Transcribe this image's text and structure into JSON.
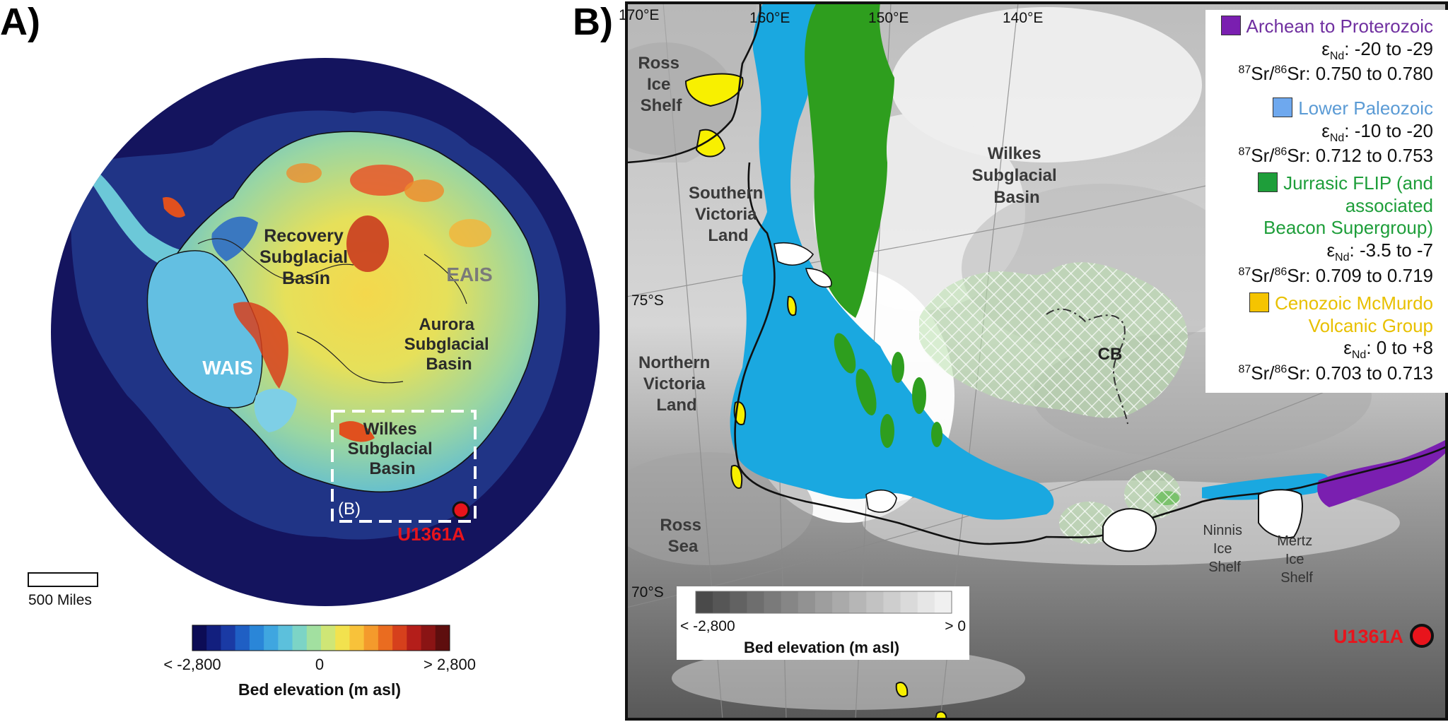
{
  "panels": {
    "a_label": "A)",
    "b_label": "B)"
  },
  "panel_a": {
    "regions": {
      "recovery": [
        "Recovery",
        "Subglacial",
        "Basin"
      ],
      "eais": "EAIS",
      "aurora": [
        "Aurora",
        "Subglacial",
        "Basin"
      ],
      "wais": "WAIS",
      "wilkes": [
        "Wilkes",
        "Subglacial",
        "Basin"
      ]
    },
    "inset_label": "(B)",
    "site_label": "U1361A",
    "scale_label": "500 Miles",
    "colorbar": {
      "min_label": "< -2,800",
      "mid_label": "0",
      "max_label": "> 2,800",
      "title": "Bed elevation (m asl)",
      "colors": [
        "#0c0c55",
        "#121f7e",
        "#1a3aa4",
        "#1f5fc4",
        "#2a86d8",
        "#3fa6e0",
        "#5cc0dc",
        "#7cd4c6",
        "#a2e0a0",
        "#cfe676",
        "#f2e24e",
        "#f8c23a",
        "#f49a2c",
        "#ea6c20",
        "#d6401c",
        "#b41e1a",
        "#8a1414",
        "#5e0e0e"
      ]
    }
  },
  "panel_b": {
    "lon_labels": [
      "170°E",
      "160°E",
      "150°E",
      "140°E"
    ],
    "lat_labels": [
      "75°S",
      "70°S"
    ],
    "places": {
      "ross_ice_shelf": [
        "Ross",
        "Ice",
        "Shelf"
      ],
      "southern_victoria_land": [
        "Southern",
        "Victoria",
        "Land"
      ],
      "northern_victoria_land": [
        "Northern",
        "Victoria",
        "Land"
      ],
      "wilkes_basin": [
        "Wilkes",
        "Subglacial",
        "Basin"
      ],
      "ross_sea": [
        "Ross",
        "Sea"
      ],
      "cb": "CB",
      "ninnis": [
        "Ninnis",
        "Ice",
        "Shelf"
      ],
      "mertz": [
        "Mertz",
        "Ice",
        "Shelf"
      ]
    },
    "site_label": "U1361A",
    "colorbar": {
      "min_label": "< -2,800",
      "max_label": "> 0",
      "title": "Bed elevation (m asl)",
      "colors": [
        "#4a4a4a",
        "#565656",
        "#626262",
        "#6e6e6e",
        "#7a7a7a",
        "#868686",
        "#929292",
        "#9e9e9e",
        "#aaaaaa",
        "#b6b6b6",
        "#c2c2c2",
        "#cecece",
        "#dadada",
        "#e6e6e6",
        "#f0f0f0"
      ]
    },
    "legend": [
      {
        "color": "#7030a0",
        "title": [
          "Archean to Proterozoic"
        ],
        "lines": [
          {
            "pre": "ε",
            "sub": "Nd",
            "post": ": -20 to -29"
          },
          {
            "sup": "87",
            "mid": "Sr/",
            "sup2": "86",
            "post": "Sr: 0.750 to 0.780"
          }
        ]
      },
      {
        "color": "#5b9bd5",
        "title": [
          "Lower Paleozoic"
        ],
        "lines": [
          {
            "pre": "ε",
            "sub": "Nd",
            "post": ": -10 to -20"
          },
          {
            "sup": "87",
            "mid": "Sr/",
            "sup2": "86",
            "post": "Sr: 0.712 to 0.753"
          }
        ]
      },
      {
        "color": "#1e9e3a",
        "title": [
          "Jurrasic FLIP (and",
          "associated",
          "Beacon Supergroup)"
        ],
        "lines": [
          {
            "pre": "ε",
            "sub": "Nd",
            "post": ": -3.5 to -7"
          },
          {
            "sup": "87",
            "mid": "Sr/",
            "sup2": "86",
            "post": "Sr: 0.709 to 0.719"
          }
        ]
      },
      {
        "color": "#f5c400",
        "title": [
          "Cenozoic McMurdo",
          "Volcanic Group"
        ],
        "lines": [
          {
            "pre": "ε",
            "sub": "Nd",
            "post": ": 0 to +8"
          },
          {
            "sup": "87",
            "mid": "Sr/",
            "sup2": "86",
            "post": "Sr: 0.703 to 0.713"
          }
        ]
      }
    ]
  },
  "colors": {
    "ocean": "#14145e",
    "site": "#e8141c",
    "archean": "#7a1fb0",
    "paleozoic": "#1aa8e0",
    "jurassic": "#2e9e1e",
    "mcmurdo": "#f8f000",
    "cb_hatch": "#a9d69c"
  },
  "icons": [
    "site-marker-icon",
    "scale-bar-icon"
  ]
}
